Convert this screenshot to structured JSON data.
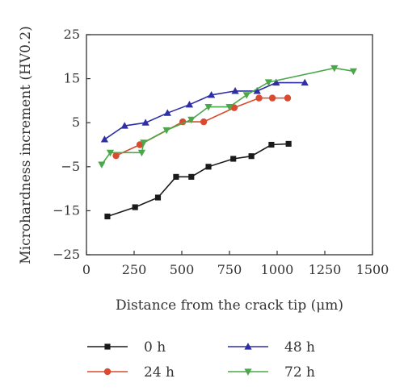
{
  "chart_data": {
    "type": "line",
    "xlabel": "Distance from the crack tip (μm)",
    "ylabel": "Microhardness increment (HV0.2)",
    "xlim": [
      0,
      1500
    ],
    "ylim": [
      -25,
      25
    ],
    "xticks": [
      0,
      250,
      500,
      750,
      1000,
      1250,
      1500
    ],
    "yticks": [
      -25,
      -15,
      -5,
      5,
      15,
      25
    ],
    "xtick_labels": [
      "0",
      "250",
      "500",
      "750",
      "1000",
      "1250",
      "1500"
    ],
    "ytick_labels": [
      "−25",
      "−15",
      "−5",
      "5",
      "15",
      "25"
    ],
    "grid": false,
    "legend_position": "bottom",
    "series": [
      {
        "name": "0 h",
        "color": "#1a1a1a",
        "marker": "square",
        "x": [
          110,
          255,
          375,
          470,
          550,
          640,
          770,
          865,
          970,
          1060
        ],
        "y": [
          -16.3,
          -14.2,
          -12.0,
          -7.3,
          -7.3,
          -5.0,
          -3.2,
          -2.6,
          0.0,
          0.2
        ]
      },
      {
        "name": "24 h",
        "color": "#d94a2f",
        "marker": "circle",
        "x": [
          155,
          280,
          505,
          615,
          775,
          905,
          975,
          1055
        ],
        "y": [
          -2.5,
          0.0,
          5.2,
          5.2,
          8.4,
          10.6,
          10.6,
          10.6
        ]
      },
      {
        "name": "48 h",
        "color": "#2e2ea6",
        "marker": "triangle-up",
        "x": [
          95,
          200,
          310,
          425,
          540,
          655,
          780,
          895,
          995,
          1145
        ],
        "y": [
          1.2,
          4.3,
          5.0,
          7.2,
          9.1,
          11.3,
          12.2,
          12.2,
          14.1,
          14.1
        ]
      },
      {
        "name": "72 h",
        "color": "#4aa84a",
        "marker": "triangle-down",
        "x": [
          80,
          125,
          290,
          300,
          420,
          550,
          640,
          750,
          840,
          955,
          1300,
          1400
        ],
        "y": [
          -4.5,
          -1.8,
          -1.8,
          0.5,
          3.3,
          5.7,
          8.6,
          8.6,
          11.3,
          14.2,
          17.4,
          16.7
        ]
      }
    ]
  }
}
